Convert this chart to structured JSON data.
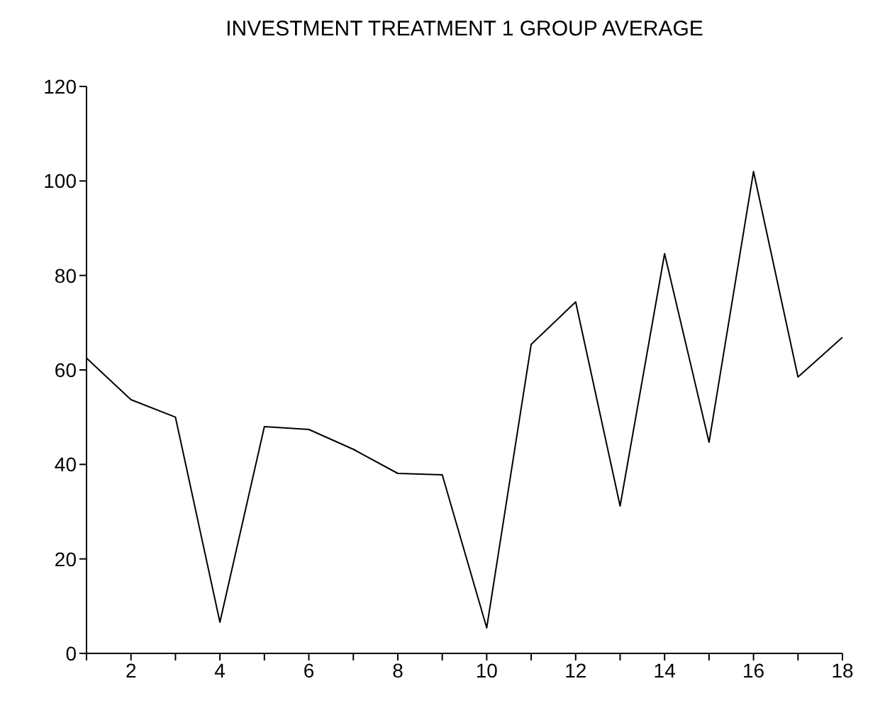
{
  "chart_data": {
    "type": "line",
    "title": "INVESTMENT TREATMENT 1 GROUP AVERAGE",
    "x": [
      1,
      2,
      3,
      4,
      5,
      6,
      7,
      8,
      9,
      10,
      11,
      12,
      13,
      14,
      15,
      16,
      17,
      18
    ],
    "series": [
      {
        "color": "#000000",
        "values": [
          62.5,
          53.7,
          50,
          6.6,
          48,
          47.4,
          43.2,
          38.1,
          37.8,
          5.4,
          65.4,
          74.4,
          31.2,
          84.6,
          44.7,
          102,
          58.5,
          66.9
        ]
      }
    ],
    "xlim": [
      1,
      18
    ],
    "xticks": [
      {
        "value": 1,
        "label": null
      },
      2,
      {
        "value": 3,
        "label": null
      },
      4,
      {
        "value": 5,
        "label": null
      },
      6,
      {
        "value": 7,
        "label": null
      },
      8,
      {
        "value": 9,
        "label": null
      },
      10,
      {
        "value": 11,
        "label": null
      },
      12,
      {
        "value": 13,
        "label": null
      },
      14,
      {
        "value": 15,
        "label": null
      },
      16,
      {
        "value": 17,
        "label": null
      },
      18
    ],
    "ylim": [
      0,
      120
    ],
    "yticks": [
      0,
      20,
      40,
      60,
      80,
      100,
      120
    ],
    "grid": false,
    "legend": false,
    "marker": "none",
    "line_style": "solid"
  }
}
